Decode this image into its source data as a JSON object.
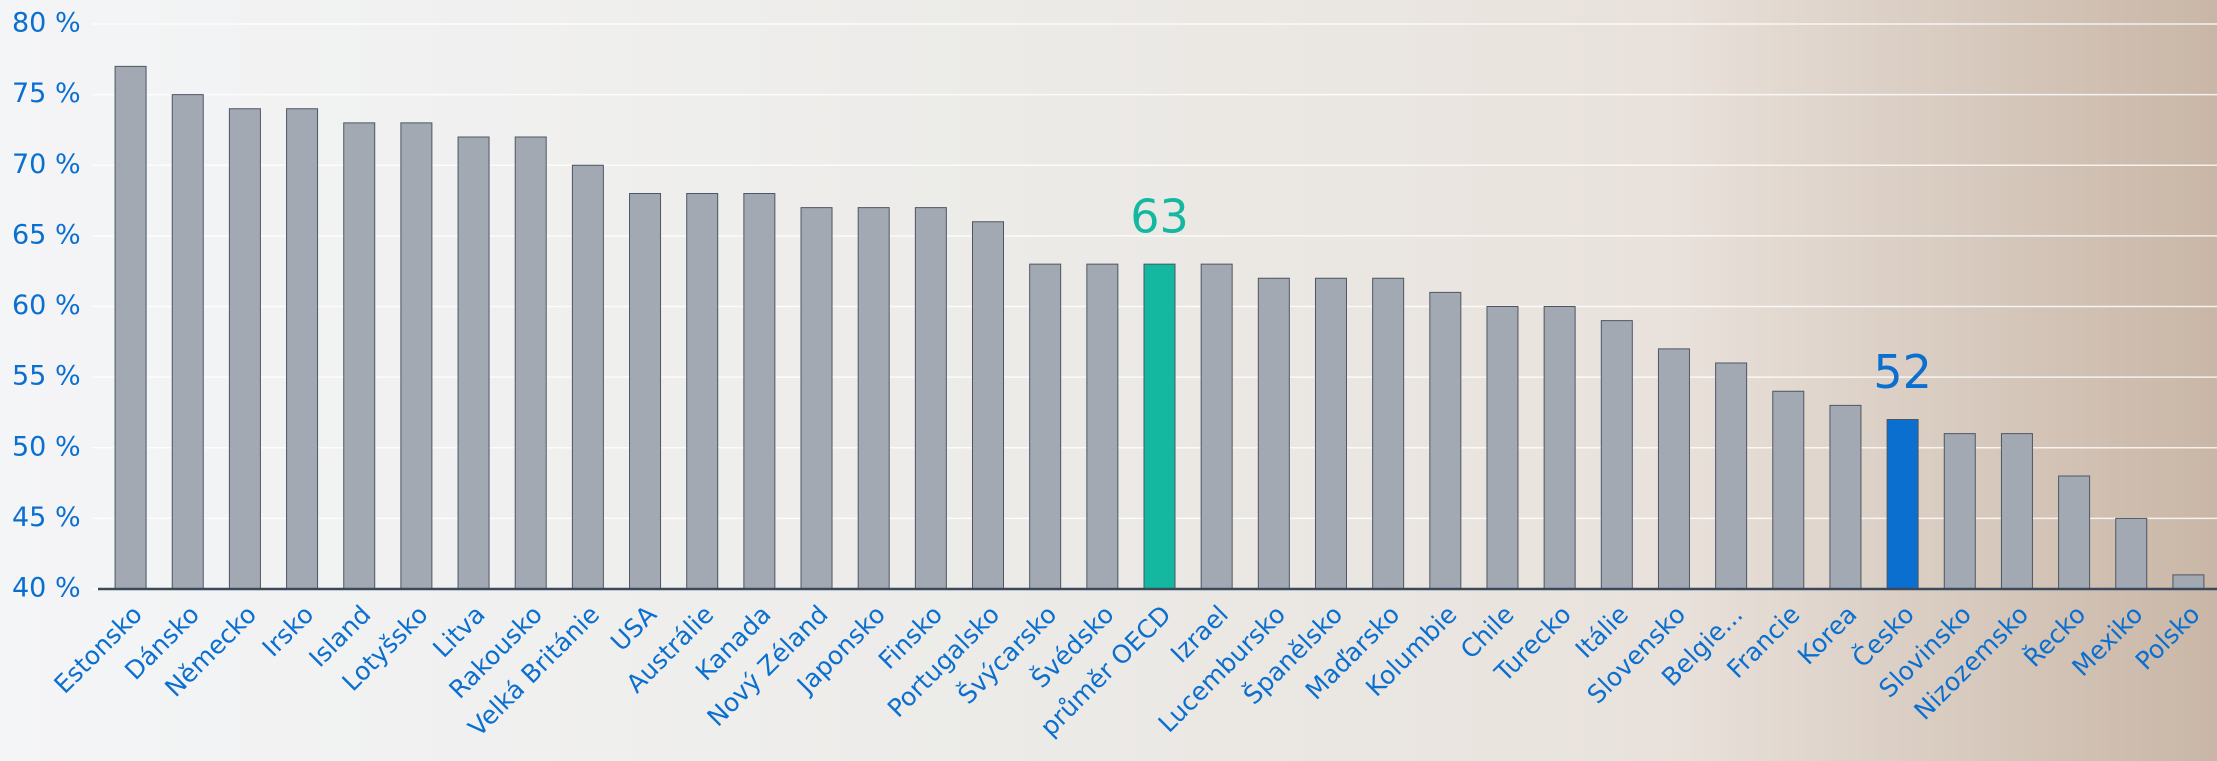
{
  "chart_data": {
    "type": "bar",
    "categories": [
      "Estonsko",
      "Dánsko",
      "Německo",
      "Irsko",
      "Island",
      "Lotyšsko",
      "Litva",
      "Rakousko",
      "Velká Británie",
      "USA",
      "Austrálie",
      "Kanada",
      "Nový Zéland",
      "Japonsko",
      "Finsko",
      "Portugalsko",
      "Švýcarsko",
      "Švédsko",
      "průměr OECD",
      "Izrael",
      "Lucembursko",
      "Španělsko",
      "Maďarsko",
      "Kolumbie",
      "Chile",
      "Turecko",
      "Itálie",
      "Slovensko",
      "Belgie...",
      "Francie",
      "Korea",
      "Česko",
      "Slovinsko",
      "Nizozemsko",
      "Řecko",
      "Mexiko",
      "Polsko"
    ],
    "values": [
      77,
      75,
      74,
      74,
      73,
      73,
      72,
      72,
      70,
      68,
      68,
      68,
      67,
      67,
      67,
      66,
      63,
      63,
      63,
      63,
      62,
      62,
      62,
      61,
      60,
      60,
      59,
      57,
      56,
      54,
      53,
      52,
      51,
      51,
      48,
      45,
      41
    ],
    "color": "#a3a9b3",
    "colors": [
      "#a3a9b3",
      "#a3a9b3",
      "#a3a9b3",
      "#a3a9b3",
      "#a3a9b3",
      "#a3a9b3",
      "#a3a9b3",
      "#a3a9b3",
      "#a3a9b3",
      "#a3a9b3",
      "#a3a9b3",
      "#a3a9b3",
      "#a3a9b3",
      "#a3a9b3",
      "#a3a9b3",
      "#a3a9b3",
      "#a3a9b3",
      "#a3a9b3",
      "#14b8a0",
      "#a3a9b3",
      "#a3a9b3",
      "#a3a9b3",
      "#a3a9b3",
      "#a3a9b3",
      "#a3a9b3",
      "#a3a9b3",
      "#a3a9b3",
      "#a3a9b3",
      "#a3a9b3",
      "#a3a9b3",
      "#a3a9b3",
      "#0b6fd0",
      "#a3a9b3",
      "#a3a9b3",
      "#a3a9b3",
      "#a3a9b3",
      "#a3a9b3"
    ],
    "ylim": [
      40,
      80
    ],
    "yticks": [
      {
        "value": 40,
        "label": "40 %"
      },
      {
        "value": 45,
        "label": "45 %"
      },
      {
        "value": 50,
        "label": "50 %"
      },
      {
        "value": 55,
        "label": "55 %"
      },
      {
        "value": 60,
        "label": "60 %"
      },
      {
        "value": 65,
        "label": "65 %"
      },
      {
        "value": 70,
        "label": "70 %"
      },
      {
        "value": 75,
        "label": "75 %"
      },
      {
        "value": 80,
        "label": "80 %"
      }
    ],
    "grid": true
  }
}
